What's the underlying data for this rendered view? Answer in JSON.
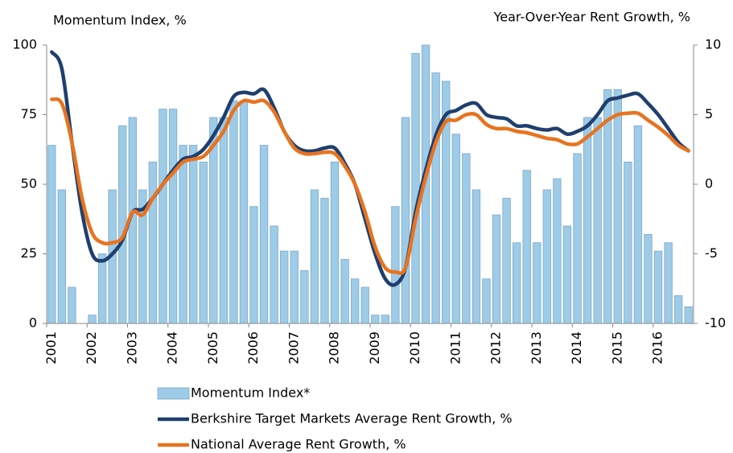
{
  "chart_data": {
    "type": "bar",
    "ylabel": "Momentum Index, %",
    "y2label": "Year-Over-Year Rent Growth, %",
    "categories": [
      "2001",
      null,
      null,
      null,
      "2002",
      null,
      null,
      null,
      "2003",
      null,
      null,
      null,
      "2004",
      null,
      null,
      null,
      "2005",
      null,
      null,
      null,
      "2006",
      null,
      null,
      null,
      "2007",
      null,
      null,
      null,
      "2008",
      null,
      null,
      null,
      "2009",
      null,
      null,
      null,
      "2010",
      null,
      null,
      null,
      "2011",
      null,
      null,
      null,
      "2012",
      null,
      null,
      null,
      "2013",
      null,
      null,
      null,
      "2014",
      null,
      null,
      null,
      "2015",
      null,
      null,
      null,
      "2016",
      null,
      null,
      null
    ],
    "ylim": [
      0,
      100
    ],
    "yticks": [
      0,
      25,
      50,
      75,
      100
    ],
    "y2lim": [
      -10,
      10
    ],
    "y2ticks": [
      -10,
      -5,
      0,
      5,
      10
    ],
    "series": [
      {
        "name": "Momentum Index*",
        "type": "bar",
        "color": "#9dcbe8",
        "values": [
          64,
          48,
          13,
          0,
          3,
          25,
          48,
          71,
          74,
          48,
          58,
          77,
          77,
          64,
          64,
          58,
          74,
          74,
          80,
          80,
          42,
          64,
          35,
          26,
          26,
          19,
          48,
          45,
          58,
          23,
          16,
          13,
          3,
          3,
          42,
          74,
          97,
          100,
          90,
          87,
          68,
          61,
          48,
          16,
          39,
          45,
          29,
          55,
          29,
          48,
          52,
          35,
          61,
          74,
          74,
          84,
          84,
          58,
          71,
          32,
          26,
          29,
          10,
          6
        ]
      },
      {
        "name": "Berkshire Target Markets Average Rent Growth, %",
        "type": "line",
        "axis": "y2",
        "color": "#1f3f6e",
        "values": [
          9.5,
          8.3,
          3,
          -2,
          -5,
          -5.5,
          -5,
          -4,
          -2,
          -1.8,
          -1,
          0,
          1,
          1.8,
          2,
          2.5,
          3.5,
          4.8,
          6.3,
          6.6,
          6.5,
          6.8,
          5.5,
          3.8,
          2.8,
          2.4,
          2.4,
          2.6,
          2.6,
          1.5,
          0,
          -2.5,
          -5,
          -6.8,
          -7.2,
          -6,
          -2,
          1,
          3.5,
          5,
          5.3,
          5.7,
          5.8,
          5,
          4.8,
          4.7,
          4.2,
          4.2,
          4,
          3.9,
          4,
          3.6,
          3.8,
          4.2,
          5,
          6,
          6.2,
          6.4,
          6.5,
          5.8,
          5,
          4,
          3,
          2.4
        ]
      },
      {
        "name": "National Average Rent Growth, %",
        "type": "line",
        "axis": "y2",
        "color": "#e8731f",
        "values": [
          6.1,
          5.8,
          3,
          -1,
          -3.5,
          -4.2,
          -4.2,
          -3.8,
          -2,
          -2.2,
          -1,
          0,
          0.8,
          1.6,
          1.8,
          2,
          2.8,
          3.8,
          5.3,
          6,
          5.9,
          6,
          5.2,
          3.8,
          2.6,
          2.2,
          2.2,
          2.3,
          2.2,
          1.3,
          0,
          -2,
          -4.5,
          -6,
          -6.3,
          -6,
          -2.5,
          0.5,
          3,
          4.5,
          4.6,
          5,
          5,
          4.3,
          4,
          4,
          3.8,
          3.7,
          3.5,
          3.3,
          3.2,
          2.9,
          2.9,
          3.4,
          4,
          4.6,
          5,
          5.1,
          5.1,
          4.6,
          4.1,
          3.5,
          2.8,
          2.4
        ]
      }
    ]
  }
}
